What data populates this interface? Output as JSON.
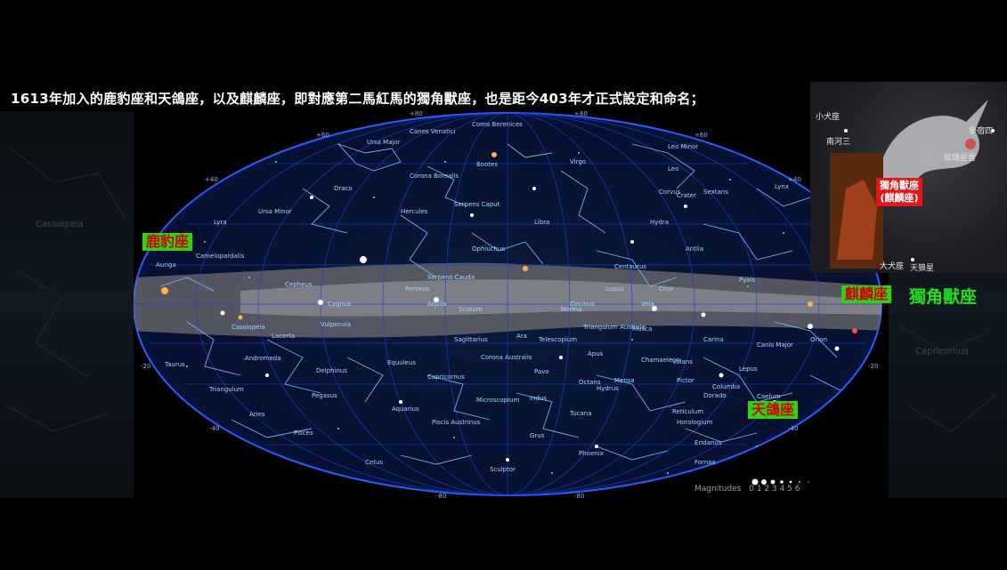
{
  "caption": "1613年加入的鹿豹座和天鴿座，以及麒麟座，即對應第二馬紅馬的獨角獸座，也是距今403年才正式設定和命名；",
  "tags": {
    "camelopardalis": "鹿豹座",
    "columba": "天鴿座",
    "monoceros": "麒麟座",
    "unicorn": "獨角獸座"
  },
  "inset": {
    "canis_minor": "小犬座",
    "procyon": "南河三",
    "betelgeuse": "參宿四",
    "rosette": "玫瑰星雲",
    "badge_line1": "獨角獸座",
    "badge_line2": "(麒麟座)",
    "canis_major": "大犬座",
    "sirius": "天狼星"
  },
  "grid_labels": {
    "top": [
      "+80",
      "+80"
    ],
    "plus60": "+60",
    "plus40": "+40",
    "plus20": "+20",
    "minus20": "-20",
    "minus40": "-40",
    "bottom": [
      "-80",
      "-80"
    ]
  },
  "constellations": [
    "Ursa Major",
    "Canes Venatici",
    "Coma Berenices",
    "Leo Minor",
    "Bootes",
    "Virgo",
    "Leo",
    "Draco",
    "Corona Borealis",
    "Serpens Caput",
    "Corvus",
    "Crater",
    "Sextans",
    "Lynx",
    "Ursa Minor",
    "Hercules",
    "Libra",
    "Hydra",
    "Lyra",
    "Ophiuchus",
    "Antlia",
    "Camelopardalis",
    "Auriga",
    "Cepheus",
    "Serpens Cauda",
    "Centaurus",
    "Lupus",
    "Crux",
    "Pyxis",
    "Perseus",
    "Cygnus",
    "Aquila",
    "Scutum",
    "Norma",
    "Circinus",
    "Vela",
    "Cassiopeia",
    "Vulpecula",
    "Sagittarius",
    "Ara",
    "Telescopium",
    "Triangulum Australe",
    "Musca",
    "Carina",
    "Canis Major",
    "Orion",
    "Lacerta",
    "Delphinus",
    "Corona Australis",
    "Apus",
    "Chamaeleon",
    "Volans",
    "Lepus",
    "Taurus",
    "Andromeda",
    "Equuleus",
    "Pavo",
    "Octans",
    "Mensa",
    "Pictor",
    "Columba",
    "Triangulum",
    "Pegasus",
    "Capricornus",
    "Indus",
    "Hydrus",
    "Dorado",
    "Caelum",
    "Aries",
    "Aquarius",
    "Microscopium",
    "Tucana",
    "Reticulum",
    "Horologium",
    "Pisces",
    "Piscis Austrinus",
    "Grus",
    "Eridanus",
    "Phoenix",
    "Fornax",
    "Cetus",
    "Sculptor"
  ],
  "magnitudes": {
    "label": "Magnitudes",
    "scale": "0 1 2 3 4 5 6"
  },
  "faint_left": "Cassiopeia",
  "faint_right": "Capricornus"
}
